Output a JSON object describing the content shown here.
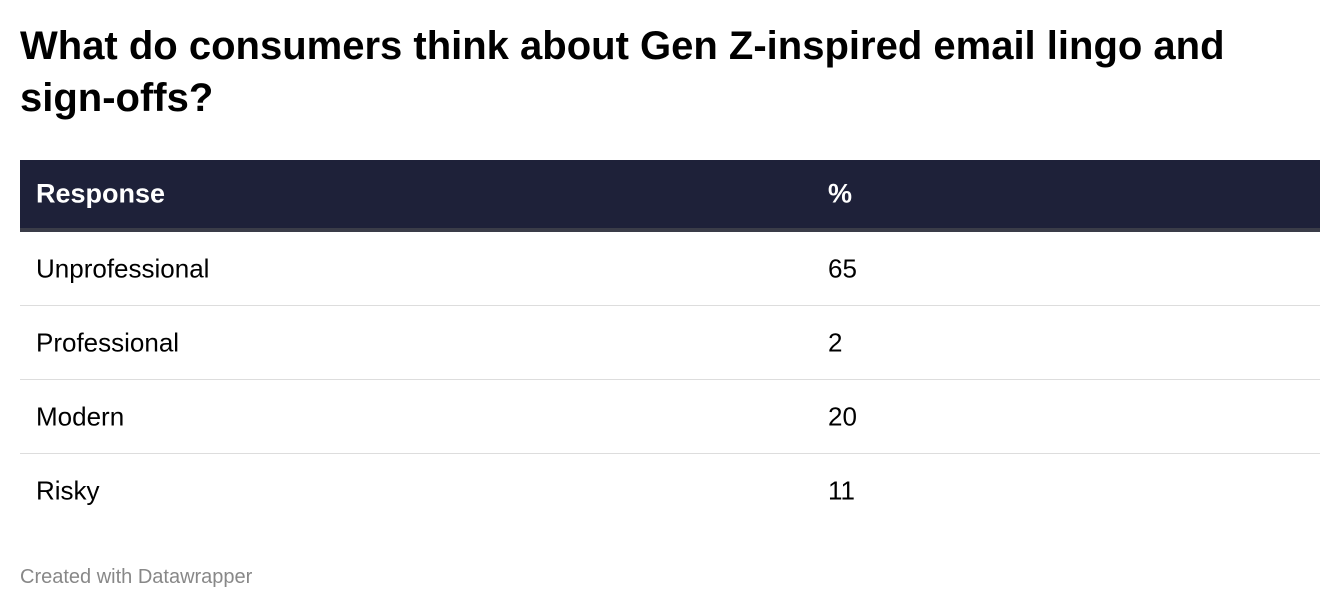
{
  "header": {
    "title": "What do consumers think about Gen Z-inspired email lingo and sign-offs?"
  },
  "table": {
    "columns": [
      "Response",
      "%"
    ],
    "rows": [
      [
        "Unprofessional",
        65
      ],
      [
        "Professional",
        2
      ],
      [
        "Modern",
        20
      ],
      [
        "Risky",
        11
      ]
    ]
  },
  "footer": {
    "credit": "Created with Datawrapper"
  }
}
